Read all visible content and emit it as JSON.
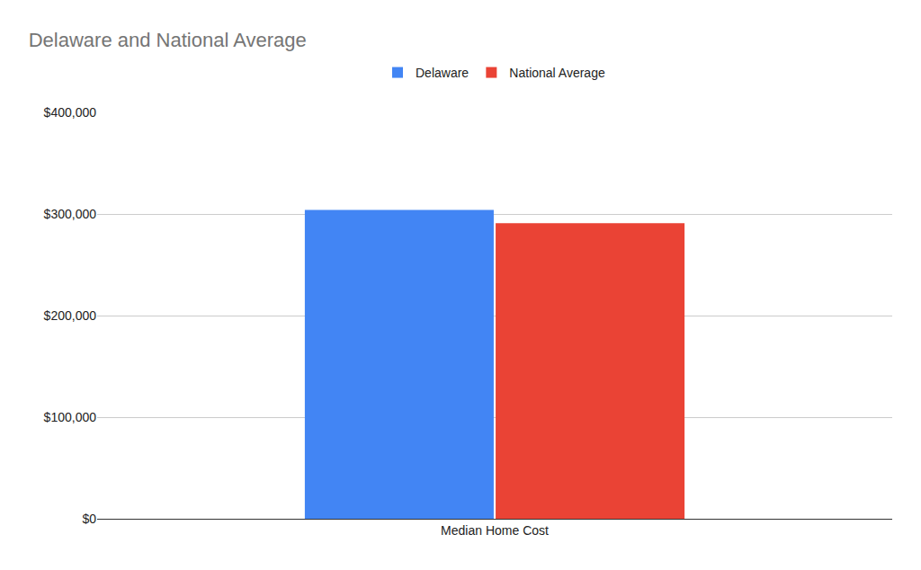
{
  "chart_data": {
    "type": "bar",
    "title": "Delaware and National Average",
    "categories": [
      "Median Home Cost"
    ],
    "series": [
      {
        "name": "Delaware",
        "color": "#4285f4",
        "values": [
          304000
        ]
      },
      {
        "name": "National Average",
        "color": "#ea4335",
        "values": [
          291000
        ]
      }
    ],
    "ylim": [
      0,
      400000
    ],
    "yticks": [
      {
        "value": 0,
        "label": "$0"
      },
      {
        "value": 100000,
        "label": "$100,000"
      },
      {
        "value": 200000,
        "label": "$200,000"
      },
      {
        "value": 300000,
        "label": "$300,000"
      },
      {
        "value": 400000,
        "label": "$400,000"
      }
    ],
    "grid": true,
    "legend": "top"
  }
}
